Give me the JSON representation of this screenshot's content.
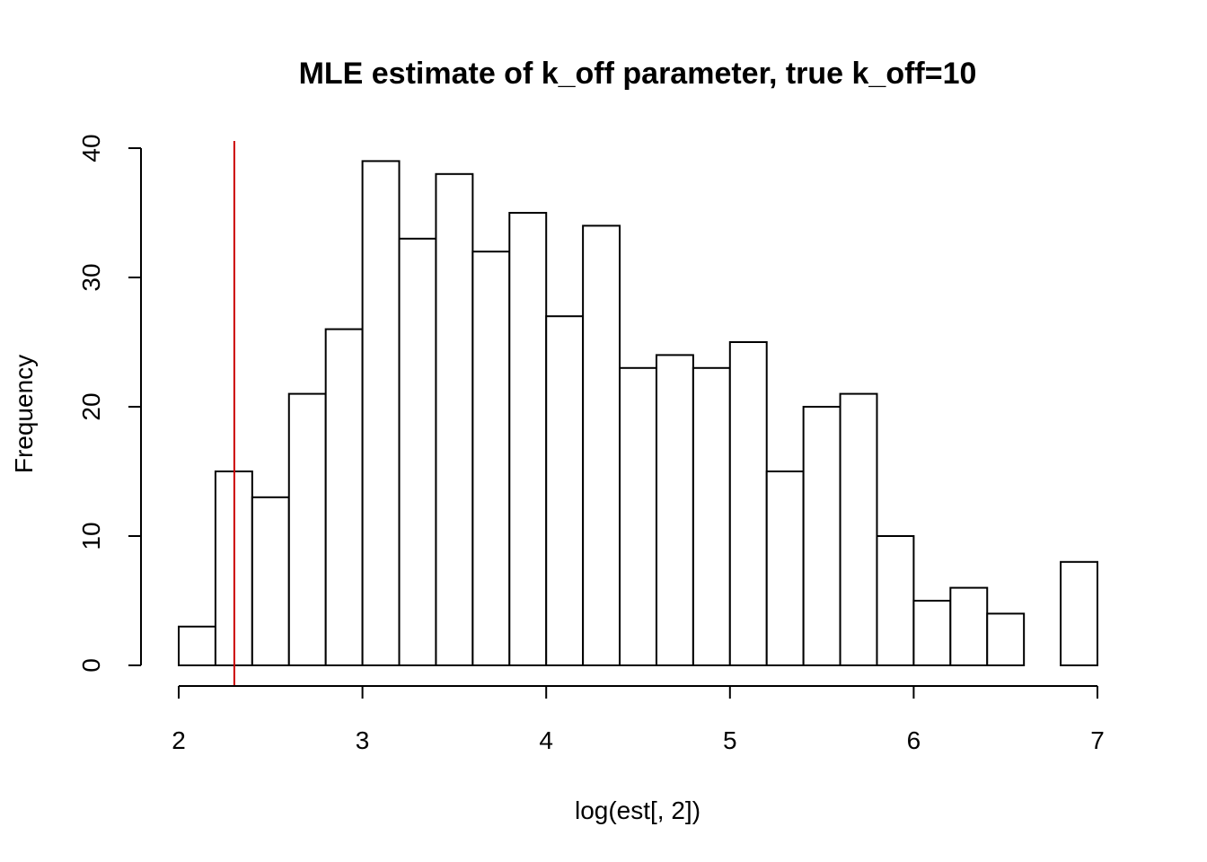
{
  "chart_data": {
    "type": "bar",
    "title": "MLE estimate of k_off parameter, true k_off=10",
    "xlabel": "log(est[, 2])",
    "ylabel": "Frequency",
    "xlim": [
      2,
      7
    ],
    "ylim": [
      0,
      40
    ],
    "x_ticks": [
      "2",
      "3",
      "4",
      "5",
      "6",
      "7"
    ],
    "y_ticks": [
      "0",
      "10",
      "20",
      "30",
      "40"
    ],
    "bin_width": 0.2,
    "bin_start": 2.0,
    "bin_edges": [
      2.0,
      2.2,
      2.4,
      2.6,
      2.8,
      3.0,
      3.2,
      3.4,
      3.6,
      3.8,
      4.0,
      4.2,
      4.4,
      4.6,
      4.8,
      5.0,
      5.2,
      5.4,
      5.6,
      5.8,
      6.0,
      6.2,
      6.4,
      6.6,
      6.8,
      7.0
    ],
    "values": [
      3,
      15,
      13,
      21,
      26,
      39,
      33,
      38,
      32,
      35,
      27,
      34,
      23,
      24,
      23,
      25,
      15,
      20,
      21,
      10,
      5,
      6,
      4,
      0,
      8
    ],
    "reference_line": {
      "x": 2.302585,
      "color": "#cc0000"
    },
    "grid": false,
    "legend": "none"
  }
}
